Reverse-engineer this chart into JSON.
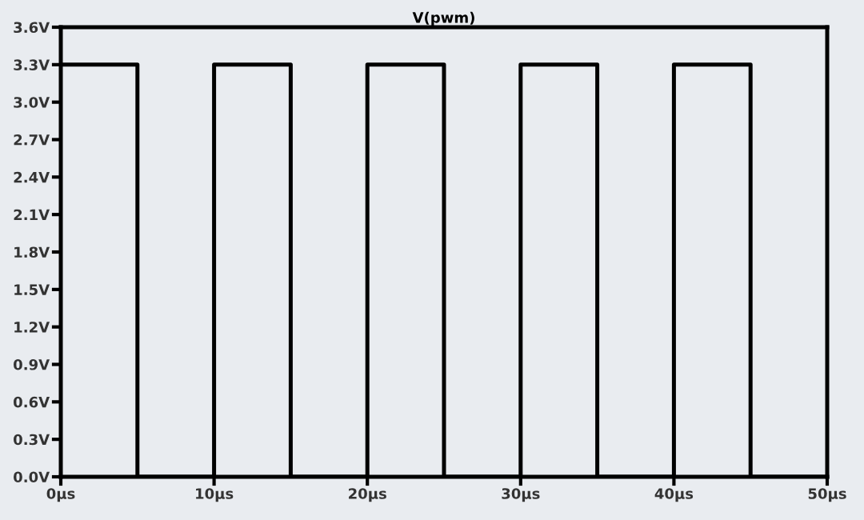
{
  "chart_data": {
    "type": "line",
    "title": "V(pwm)",
    "x": [
      0,
      5,
      5,
      10,
      10,
      15,
      15,
      20,
      20,
      25,
      25,
      30,
      30,
      35,
      35,
      40,
      40,
      45,
      45,
      50
    ],
    "series": [
      {
        "color": "#000000",
        "values": [
          3.3,
          3.3,
          0,
          0,
          3.3,
          3.3,
          0,
          0,
          3.3,
          3.3,
          0,
          0,
          3.3,
          3.3,
          0,
          0,
          3.3,
          3.3,
          0,
          0
        ]
      }
    ],
    "xlim": [
      0,
      50
    ],
    "xticks": [
      {
        "value": 0,
        "label": "0µs"
      },
      {
        "value": 10,
        "label": "10µs"
      },
      {
        "value": 20,
        "label": "20µs"
      },
      {
        "value": 30,
        "label": "30µs"
      },
      {
        "value": 40,
        "label": "40µs"
      },
      {
        "value": 50,
        "label": "50µs"
      }
    ],
    "ylim": [
      0,
      3.6
    ],
    "yticks": [
      {
        "value": 0,
        "label": "0.0V"
      },
      {
        "value": 0.3,
        "label": "0.3V"
      },
      {
        "value": 0.6,
        "label": "0.6V"
      },
      {
        "value": 0.9,
        "label": "0.9V"
      },
      {
        "value": 1.2,
        "label": "1.2V"
      },
      {
        "value": 1.5,
        "label": "1.5V"
      },
      {
        "value": 1.8,
        "label": "1.8V"
      },
      {
        "value": 2.1,
        "label": "2.1V"
      },
      {
        "value": 2.4,
        "label": "2.4V"
      },
      {
        "value": 2.7,
        "label": "2.7V"
      },
      {
        "value": 3.0,
        "label": "3.0V"
      },
      {
        "value": 3.3,
        "label": "3.3V"
      },
      {
        "value": 3.6,
        "label": "3.6V"
      }
    ],
    "grid": false,
    "legend": false,
    "marker": "none",
    "line_style": "solid"
  }
}
